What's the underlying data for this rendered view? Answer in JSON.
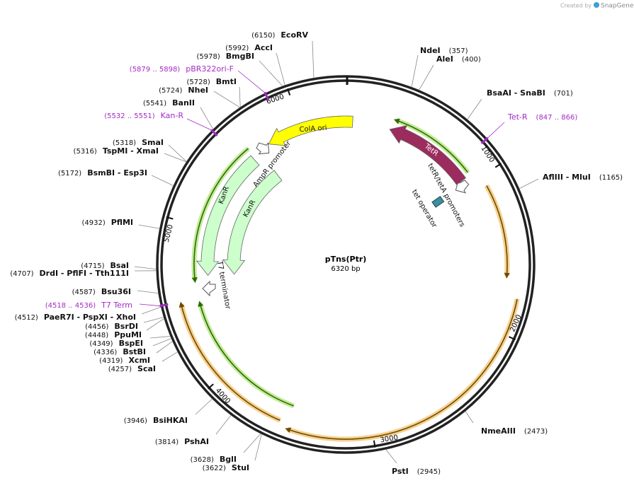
{
  "credit": {
    "prefix": "Created by",
    "brand": "SnapGene"
  },
  "plasmid": {
    "name": "pTns(Ptr)",
    "length": "6320 bp"
  },
  "ruler": {
    "ticks": [
      1000,
      2000,
      3000,
      4000,
      5000,
      6000
    ]
  },
  "sites": [
    {
      "name": "EcoRV",
      "position": "(6150)"
    },
    {
      "name": "AccI",
      "position": "(5992)"
    },
    {
      "name": "BmgBI",
      "position": "(5978)"
    },
    {
      "name": "BmtI",
      "position": "(5728)"
    },
    {
      "name": "NheI",
      "position": "(5724)"
    },
    {
      "name": "BanII",
      "position": "(5541)"
    },
    {
      "name": "SmaI",
      "position": "(5318)"
    },
    {
      "name": "TspMI  -  XmaI",
      "position": "(5316)"
    },
    {
      "name": "BsmBI  -  Esp3I",
      "position": "(5172)"
    },
    {
      "name": "PflMI",
      "position": "(4932)"
    },
    {
      "name": "BsaI",
      "position": "(4715)"
    },
    {
      "name": "DrdI  -  PflFI  -  Tth111I",
      "position": "(4707)"
    },
    {
      "name": "Bsu36I",
      "position": "(4587)"
    },
    {
      "name": "PaeR7I  -  PspXI  -  XhoI",
      "position": "(4512)"
    },
    {
      "name": "BsrDI",
      "position": "(4456)"
    },
    {
      "name": "PpuMI",
      "position": "(4448)"
    },
    {
      "name": "BspEI",
      "position": "(4349)"
    },
    {
      "name": "BstBI",
      "position": "(4336)"
    },
    {
      "name": "XcmI",
      "position": "(4319)"
    },
    {
      "name": "ScaI",
      "position": "(4257)"
    },
    {
      "name": "BsiHKAI",
      "position": "(3946)"
    },
    {
      "name": "PshAI",
      "position": "(3814)"
    },
    {
      "name": "BglI",
      "position": "(3628)"
    },
    {
      "name": "StuI",
      "position": "(3622)"
    },
    {
      "name": "PstI",
      "position": "(2945)"
    },
    {
      "name": "NmeAIII",
      "position": "(2473)"
    },
    {
      "name": "AflIII  -  MluI",
      "position": "(1165)"
    },
    {
      "name": "BsaAI  -  SnaBI",
      "position": "(701)"
    },
    {
      "name": "NdeI",
      "position": "(357)"
    },
    {
      "name": "AleI",
      "position": "(400)"
    }
  ],
  "primer_sites": [
    {
      "name": "pBR322ori-F",
      "range": "(5879 .. 5898)"
    },
    {
      "name": "Kan-R",
      "range": "(5532 .. 5551)"
    },
    {
      "name": "T7 Term",
      "range": "(4518 .. 4536)"
    },
    {
      "name": "Tet-R",
      "range": "(847 .. 866)"
    }
  ],
  "features": [
    "ColA ori",
    "TetR",
    "tetR/tetA promoters",
    "tet operator",
    "AmpR promoter",
    "KanR",
    "KanR",
    "T7 terminator"
  ]
}
